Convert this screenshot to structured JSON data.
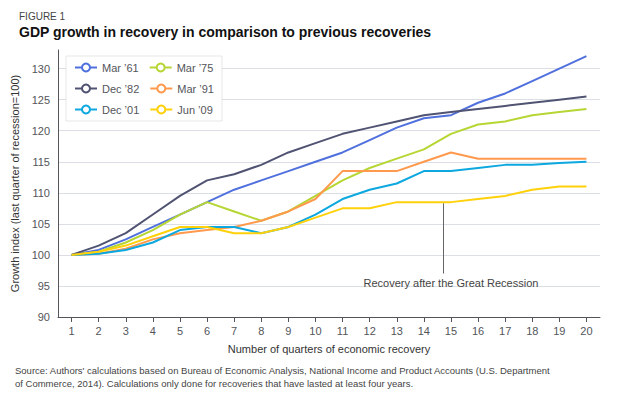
{
  "chart_data": {
    "type": "line",
    "figure_label": "FIGURE 1",
    "title": "GDP growth in recovery in comparison to previous recoveries",
    "xlabel": "Number of quarters of economic recovery",
    "ylabel": "Growth index (last quarter of recession=100)",
    "source": [
      "Source: Authors' calculations based on Bureau of Economic Analysis, National Income and Product Accounts (U.S. Department",
      "of Commerce, 2014). Calculations only done for recoveries that have lasted at least four years."
    ],
    "x": [
      1,
      2,
      3,
      4,
      5,
      6,
      7,
      8,
      9,
      10,
      11,
      12,
      13,
      14,
      15,
      16,
      17,
      18,
      19,
      20
    ],
    "xlim": [
      0.5,
      20.5
    ],
    "xticks": [
      1,
      2,
      3,
      4,
      5,
      6,
      7,
      8,
      9,
      10,
      11,
      12,
      13,
      14,
      15,
      16,
      17,
      18,
      19,
      20
    ],
    "ylim": [
      90,
      133
    ],
    "yticks": [
      90,
      95,
      100,
      105,
      110,
      115,
      120,
      125,
      130
    ],
    "grid": "y",
    "legend": "upper left",
    "annotations": [
      {
        "text": "Recovery after the Great Recession",
        "x": 15.0,
        "y": 97.0,
        "tip_x": 14.7,
        "tip_y": 108.3
      }
    ],
    "series": [
      {
        "name": "Mar ’61",
        "values": [
          100,
          100.8,
          102.5,
          104.5,
          106.5,
          108.5,
          110.5,
          112.0,
          113.5,
          115.0,
          116.5,
          118.5,
          120.5,
          122.0,
          122.5,
          124.5,
          126.0,
          128.0,
          130.0,
          132.0
        ]
      },
      {
        "name": "Mar ’75",
        "values": [
          100,
          100.5,
          102.0,
          104.0,
          106.5,
          108.5,
          107.0,
          105.5,
          107.0,
          109.5,
          112.0,
          114.0,
          115.5,
          117.0,
          119.5,
          121.0,
          121.5,
          122.5,
          123.0,
          123.5
        ]
      },
      {
        "name": "Dec ’82",
        "values": [
          100,
          101.5,
          103.5,
          106.5,
          109.5,
          112.0,
          113.0,
          114.5,
          116.5,
          118.0,
          119.5,
          120.5,
          121.5,
          122.5,
          123.0,
          123.5,
          124.0,
          124.5,
          125.0,
          125.5
        ]
      },
      {
        "name": "Mar ’91",
        "values": [
          100,
          100.2,
          101.0,
          102.5,
          103.5,
          104.0,
          104.5,
          105.5,
          107.0,
          109.0,
          113.5,
          113.5,
          113.5,
          115.0,
          116.5,
          115.5,
          115.5,
          115.5,
          115.5,
          115.5
        ]
      },
      {
        "name": "Dec ’01",
        "values": [
          100,
          100.2,
          100.8,
          102.0,
          104.0,
          104.5,
          104.5,
          103.5,
          104.5,
          106.5,
          109.0,
          110.5,
          111.5,
          113.5,
          113.5,
          114.0,
          114.5,
          114.5,
          114.8,
          115.0
        ]
      },
      {
        "name": "Jun ’09",
        "values": [
          100,
          100.5,
          101.5,
          103.0,
          104.5,
          104.5,
          103.5,
          103.5,
          104.5,
          106.0,
          107.5,
          107.5,
          108.5,
          108.5,
          108.5,
          109.0,
          109.5,
          110.5,
          111.0,
          111.0
        ]
      }
    ]
  }
}
